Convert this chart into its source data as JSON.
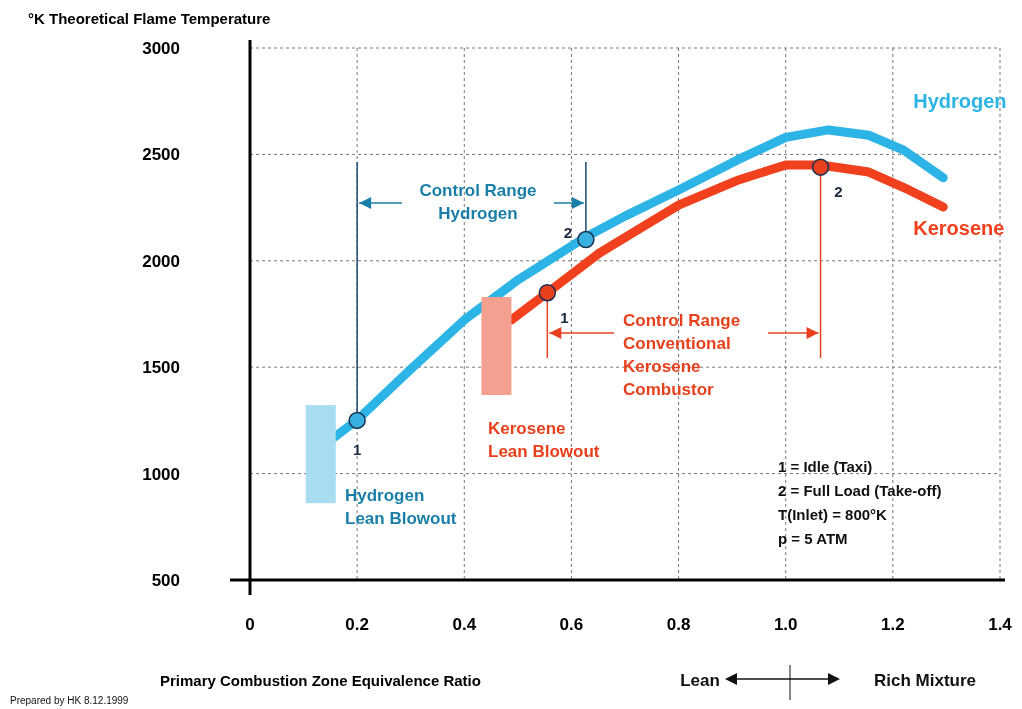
{
  "chart_data": {
    "type": "line",
    "ylabel": "°K Theoretical Flame Temperature",
    "xlabel": "Primary Combustion Zone Equivalence Ratio",
    "xlim": [
      0,
      1.4
    ],
    "xticks": [
      0,
      0.2,
      0.4,
      0.6,
      0.8,
      {
        "value": 1,
        "label": "1.0"
      },
      1.2,
      1.4
    ],
    "ylim": [
      500,
      3000
    ],
    "yticks": [
      500,
      1000,
      1500,
      2000,
      2500,
      3000
    ],
    "grid": true,
    "series": [
      {
        "name": "Hydrogen",
        "color": "#2db4e6",
        "x": [
          0.158,
          0.2,
          0.3,
          0.4,
          0.5,
          0.627,
          0.7,
          0.8,
          0.91,
          1.0,
          1.08,
          1.155,
          1.22,
          1.294
        ],
        "values": [
          1172,
          1252,
          1490,
          1722,
          1910,
          2112,
          2210,
          2333,
          2474,
          2580,
          2615,
          2590,
          2520,
          2390
        ]
      },
      {
        "name": "Kerosene",
        "color": "#f0401e",
        "x": [
          0.488,
          0.555,
          0.652,
          0.8,
          0.912,
          1.0,
          1.065,
          1.155,
          1.23,
          1.294
        ],
        "values": [
          1722,
          1850,
          2036,
          2262,
          2380,
          2450,
          2450,
          2417,
          2333,
          2253
        ]
      },
      {
        "type": "scatter",
        "marker": "circle",
        "color": "#3ab0e0",
        "x": [
          0.2,
          0.627
        ],
        "values": [
          1250,
          2100
        ]
      },
      {
        "type": "scatter",
        "marker": "circle",
        "color": "#e8401c",
        "x": [
          0.555,
          1.065
        ],
        "values": [
          1850,
          2440
        ]
      },
      {
        "type": "bar",
        "color": "#a8dcf0",
        "x": [
          0.132
        ],
        "base": [
          861
        ],
        "values": [
          461
        ]
      },
      {
        "type": "bar",
        "color": "#f4a090",
        "x": [
          0.46
        ],
        "base": [
          1369
        ],
        "values": [
          461
        ]
      }
    ],
    "annotations": [
      {
        "text": "1",
        "x": 0.2,
        "y": 1250
      },
      {
        "text": "2",
        "x": 0.627,
        "y": 2100
      },
      {
        "text": "1",
        "x": 0.555,
        "y": 1850
      },
      {
        "text": "2",
        "x": 1.065,
        "y": 2440
      },
      "Control Range\nHydrogen",
      "Control Range\nConventional\nKerosene\nCombustor",
      "Hydrogen\nLean Blowout",
      "Kerosene\nLean Blowout",
      "1  = Idle (Taxi)",
      "2  = Full Load (Take-off)",
      "T(Inlet) = 800°K",
      "p  = 5 ATM",
      "Lean",
      "Rich Mixture",
      "Prepared by HK 8.12.1999"
    ]
  }
}
